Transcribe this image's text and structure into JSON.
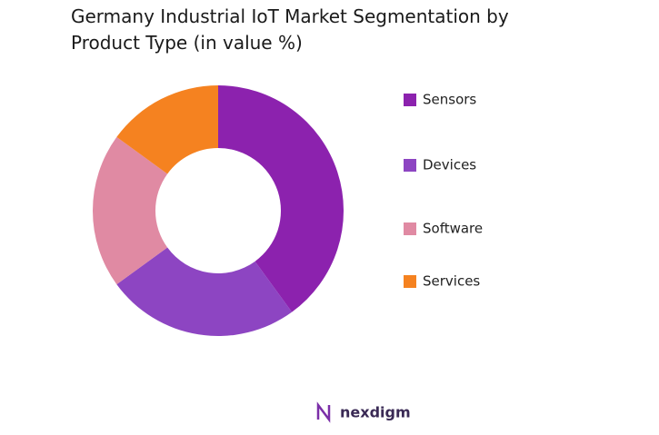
{
  "chart_data": {
    "type": "donut",
    "title": "Germany Industrial IoT Market Segmentation by Product Type (in value %)",
    "categories": [
      "Sensors",
      "Devices",
      "Software",
      "Services"
    ],
    "values": [
      40,
      25,
      20,
      15
    ],
    "colors": [
      "#8c22ae",
      "#8d45c2",
      "#e08aa3",
      "#f58220"
    ],
    "legend": "right"
  },
  "logo": "nexdigm"
}
